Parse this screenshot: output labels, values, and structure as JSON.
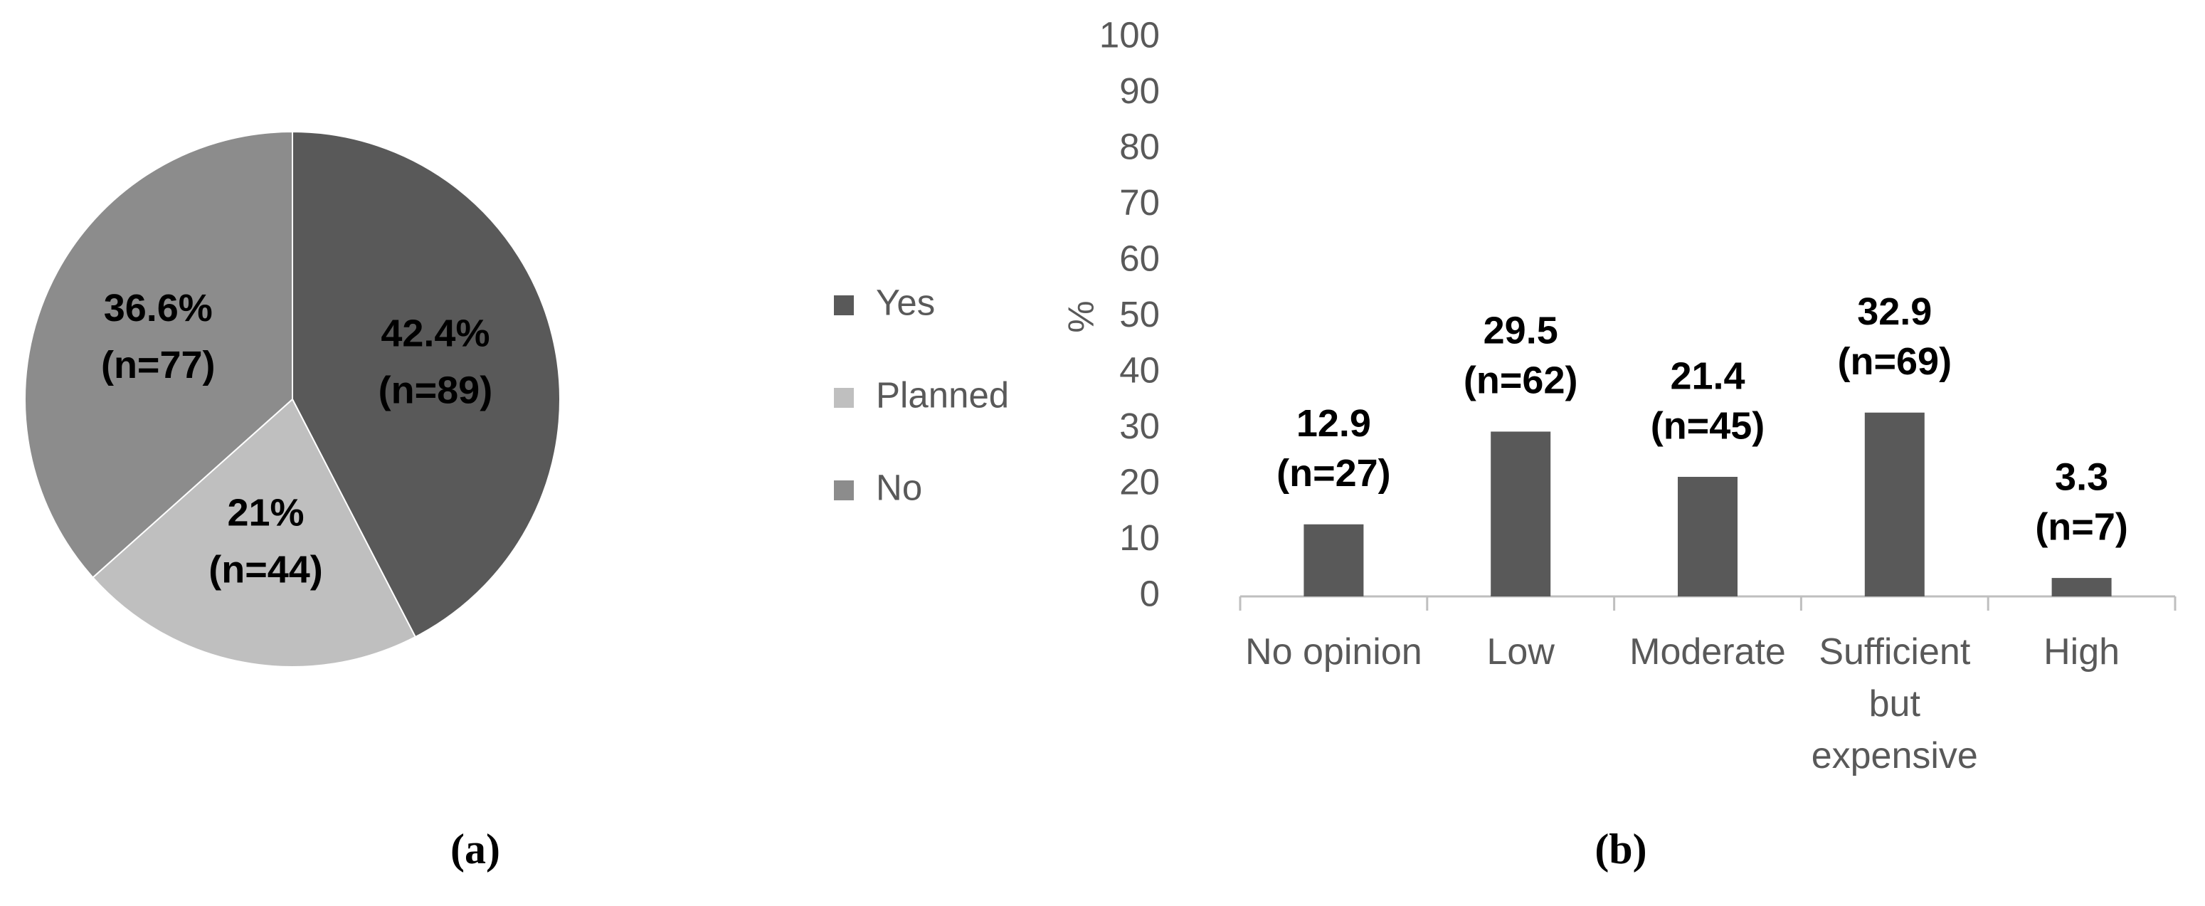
{
  "chart_data": [
    {
      "type": "pie",
      "caption": "(a)",
      "categories": [
        "Yes",
        "Planned",
        "No"
      ],
      "values": [
        42.4,
        21,
        36.6
      ],
      "value_labels": [
        "42.4%",
        "21%",
        "36.6%"
      ],
      "n_labels": [
        "(n=89)",
        "(n=44)",
        "(n=77)"
      ],
      "colors": [
        "#595959",
        "#bfbfbf",
        "#8c8c8c"
      ]
    },
    {
      "type": "bar",
      "caption": "(b)",
      "y_label": "%",
      "categories": [
        "No opinion",
        "Low",
        "Moderate",
        "Sufficient but expensive",
        "High"
      ],
      "values": [
        12.9,
        29.5,
        21.4,
        32.9,
        3.3
      ],
      "n_labels": [
        "(n=27)",
        "(n=62)",
        "(n=45)",
        "(n=69)",
        "(n=7)"
      ],
      "color": "#595959",
      "ylim": [
        0,
        100
      ],
      "yticks": [
        0,
        10,
        20,
        30,
        40,
        50,
        60,
        70,
        80,
        90,
        100
      ],
      "grid": false
    }
  ]
}
